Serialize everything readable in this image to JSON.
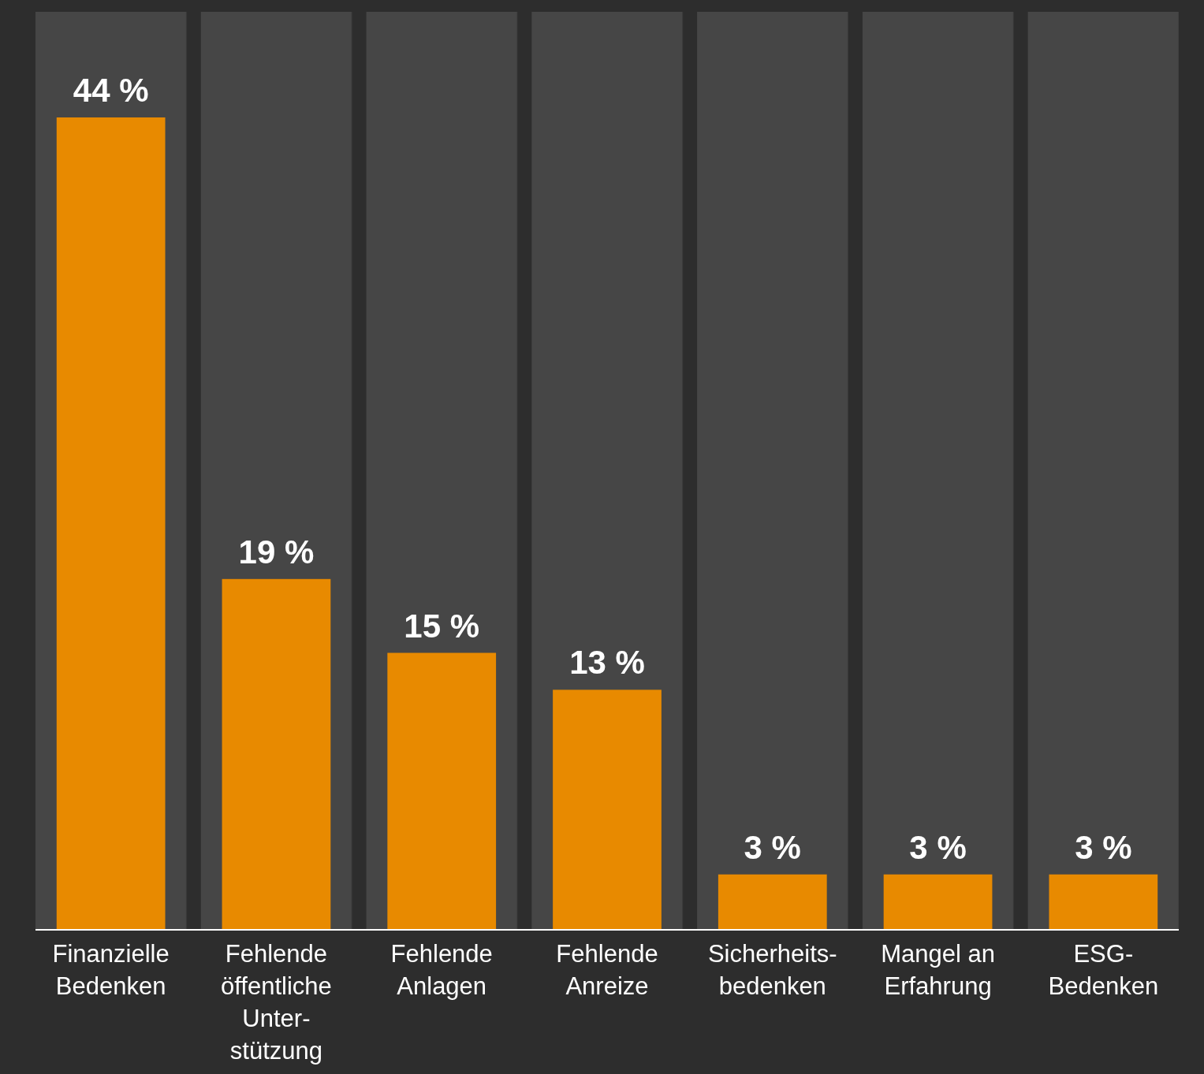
{
  "chart_data": {
    "type": "bar",
    "categories": [
      "Finanzielle\nBedenken",
      "Fehlende\nöffentliche\nUnter-\nstützung",
      "Fehlende\nAnlagen",
      "Fehlende\nAnreize",
      "Sicherheits-\nbedenken",
      "Mangel an\nErfahrung",
      "ESG-\nBedenken"
    ],
    "values": [
      44,
      19,
      15,
      13,
      3,
      3,
      3
    ],
    "value_labels": [
      "44 %",
      "19 %",
      "15 %",
      "13 %",
      "3 %",
      "3 %",
      "3 %"
    ],
    "color": "#e88a00"
  }
}
